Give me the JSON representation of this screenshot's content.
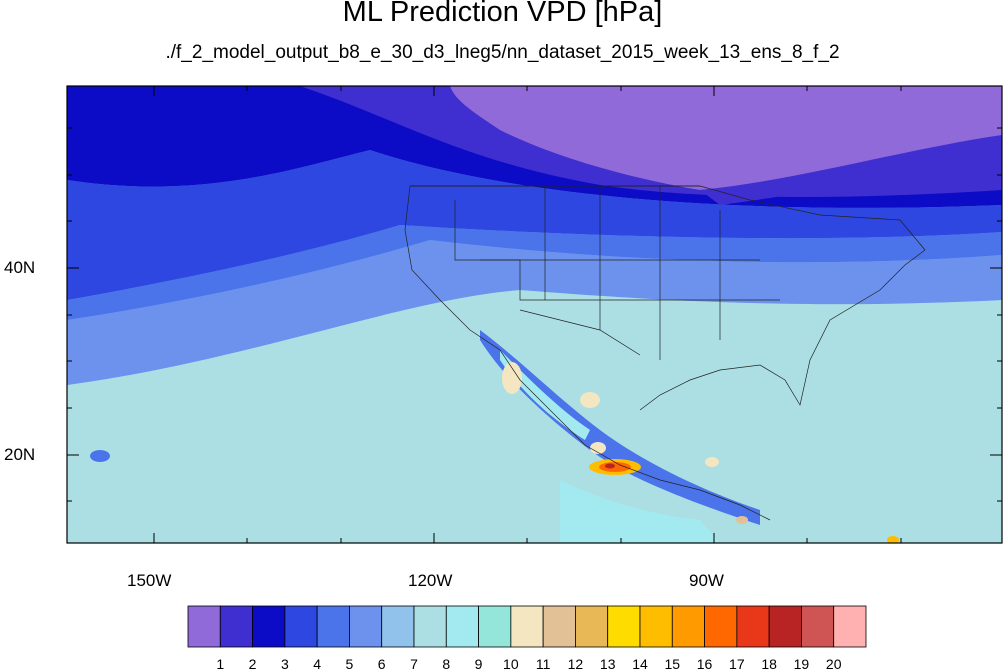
{
  "title": "ML Prediction VPD [hPa]",
  "subtitle": "./f_2_model_output_b8_e_30_d3_lneg5/nn_dataset_2015_week_13_ens_8_f_2",
  "map": {
    "lon_ticks": [
      "150W",
      "120W",
      "90W"
    ],
    "lat_ticks": [
      "40N",
      "20N"
    ]
  },
  "colorbar": {
    "labels": [
      "1",
      "2",
      "3",
      "4",
      "5",
      "6",
      "7",
      "8",
      "9",
      "10",
      "11",
      "12",
      "13",
      "14",
      "15",
      "16",
      "17",
      "18",
      "19",
      "20"
    ],
    "colors": [
      "#8f6ad8",
      "#3f2fd0",
      "#0c0cc6",
      "#2d47e0",
      "#4b74ea",
      "#6c92ee",
      "#90c2ec",
      "#acdfe4",
      "#a3eaf0",
      "#94e6da",
      "#f3e6c0",
      "#e1c195",
      "#e8b756",
      "#ffdc00",
      "#ffbd00",
      "#ff9a00",
      "#ff6800",
      "#e93719",
      "#b82323",
      "#cf5555",
      "#ffb0b0"
    ]
  }
}
